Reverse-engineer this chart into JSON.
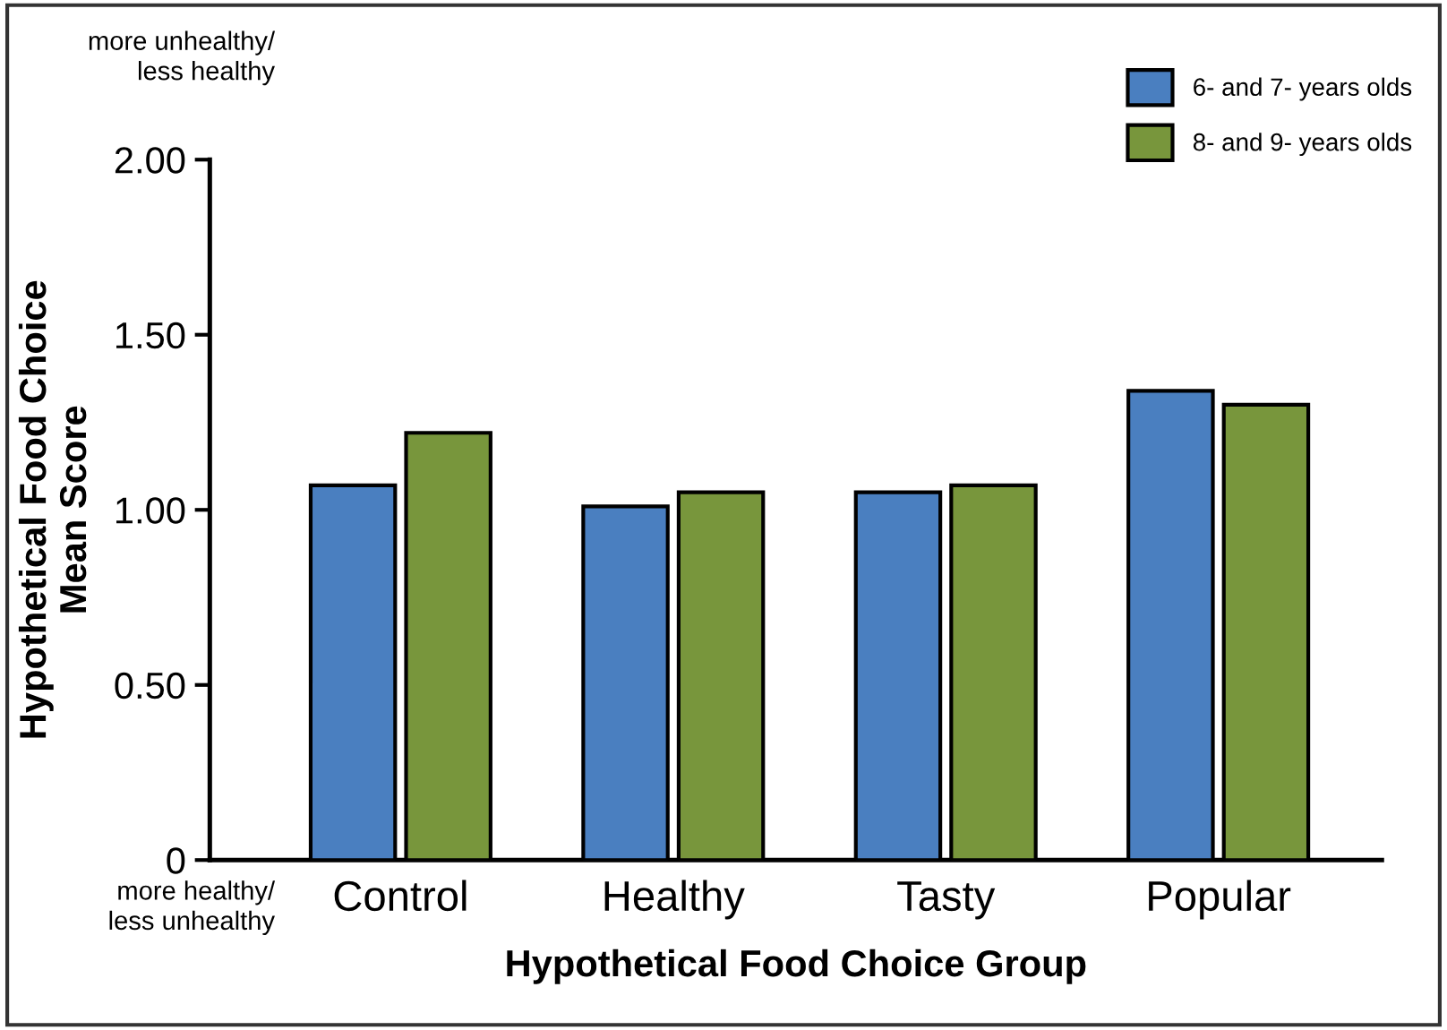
{
  "chart_data": {
    "type": "bar",
    "xlabel": "Hypothetical Food Choice Group",
    "ylabel": "Hypothetical Food Choice\nMean Score",
    "categories": [
      "Control",
      "Healthy",
      "Tasty",
      "Popular"
    ],
    "series": [
      {
        "name": "6- and 7- years olds",
        "color": "#4a7fc0",
        "values": [
          1.07,
          1.01,
          1.05,
          1.34
        ]
      },
      {
        "name": "8- and 9- years olds",
        "color": "#78963c",
        "values": [
          1.22,
          1.05,
          1.07,
          1.3
        ]
      }
    ],
    "ylim": [
      0,
      2.0
    ],
    "yticks": [
      {
        "value": 0,
        "label": "0"
      },
      {
        "value": 0.5,
        "label": "0.50"
      },
      {
        "value": 1.0,
        "label": "1.00"
      },
      {
        "value": 1.5,
        "label": "1.50"
      },
      {
        "value": 2.0,
        "label": "2.00"
      }
    ],
    "annotations": [
      "more unhealthy/\nless healthy",
      "more healthy/\nless unhealthy"
    ],
    "grid": false,
    "legend": "top right"
  }
}
